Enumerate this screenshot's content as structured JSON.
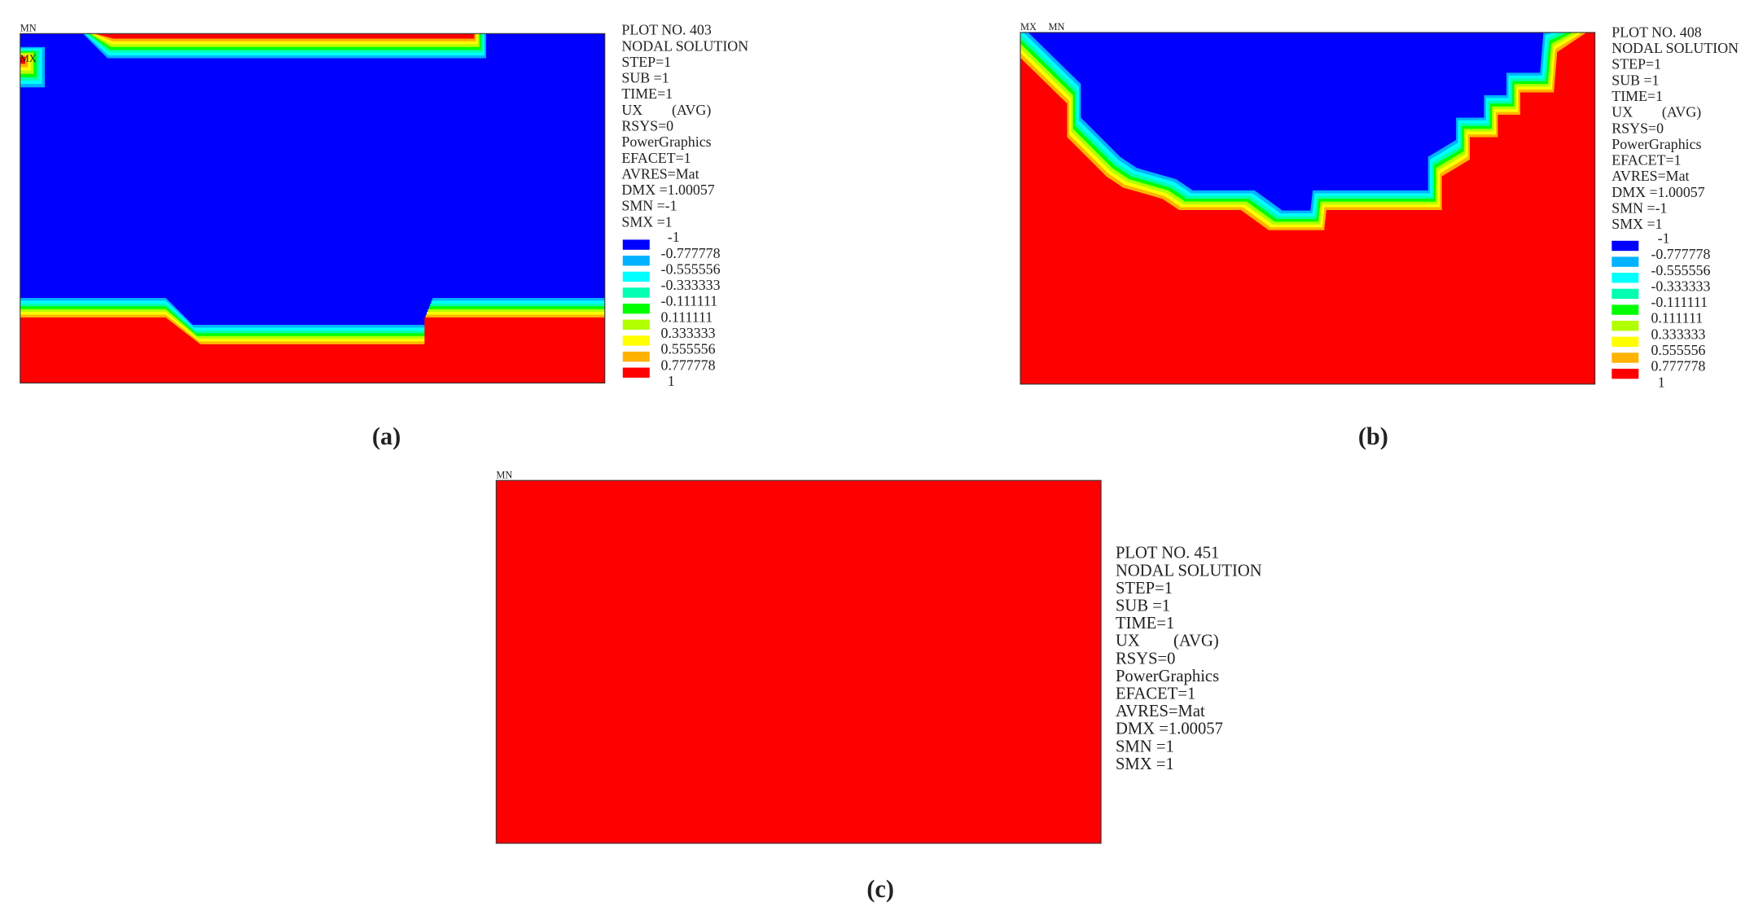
{
  "contour_colors": [
    "#0000ff",
    "#00b2ff",
    "#00ffff",
    "#00ffb2",
    "#00ff00",
    "#b2ff00",
    "#ffff00",
    "#ffb200",
    "#ff0000"
  ],
  "panels": [
    {
      "caption": "(a)",
      "mn": "MN",
      "mx": "MX",
      "info": [
        "PLOT NO. 403",
        "NODAL SOLUTION",
        "STEP=1",
        "SUB =1",
        "TIME=1",
        "UX        (AVG)",
        "RSYS=0",
        "PowerGraphics",
        "EFACET=1",
        "AVRES=Mat",
        "DMX =1.00057",
        "SMN =-1",
        "SMX =1"
      ],
      "legend": [
        "-1",
        "-0.777778",
        "-0.555556",
        "-0.333333",
        "-0.111111",
        "0.111111",
        "0.333333",
        "0.555556",
        "0.777778",
        "1"
      ]
    },
    {
      "caption": "(b)",
      "mn": "MN",
      "mx": "MX",
      "info": [
        "PLOT NO. 408",
        "NODAL SOLUTION",
        "STEP=1",
        "SUB =1",
        "TIME=1",
        "UX        (AVG)",
        "RSYS=0",
        "PowerGraphics",
        "EFACET=1",
        "AVRES=Mat",
        "DMX =1.00057",
        "SMN =-1",
        "SMX =1"
      ],
      "legend": [
        "-1",
        "-0.777778",
        "-0.555556",
        "-0.333333",
        "-0.111111",
        "0.111111",
        "0.333333",
        "0.555556",
        "0.777778",
        "1"
      ]
    },
    {
      "caption": "(c)",
      "mn": "MN",
      "info": [
        "PLOT NO. 451",
        "NODAL SOLUTION",
        "STEP=1",
        "SUB =1",
        "TIME=1",
        "UX        (AVG)",
        "RSYS=0",
        "PowerGraphics",
        "EFACET=1",
        "AVRES=Mat",
        "DMX =1.00057",
        "SMN =1",
        "SMX =1"
      ]
    }
  ]
}
